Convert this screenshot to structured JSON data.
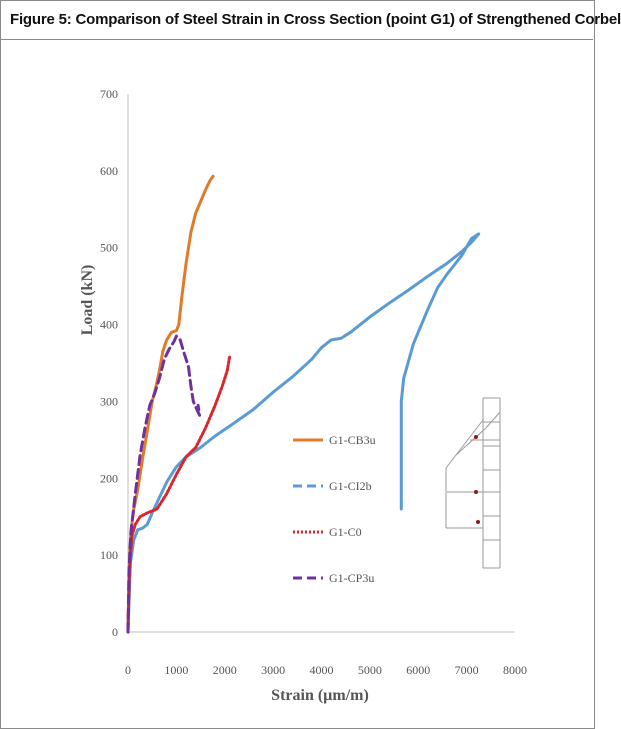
{
  "figure": {
    "title": "Figure 5: Comparison of Steel Strain in Cross Section (point G1) of Strengthened Corbel"
  },
  "chart_data": {
    "type": "line",
    "xlabel": "Strain (µm/m)",
    "ylabel": "Load (kN)",
    "xlim": [
      0,
      8000
    ],
    "ylim": [
      0,
      700
    ],
    "x_ticks": [
      0,
      1000,
      2000,
      3000,
      4000,
      5000,
      6000,
      7000,
      8000
    ],
    "y_ticks": [
      0,
      100,
      200,
      300,
      400,
      500,
      600,
      700
    ],
    "grid": false,
    "legend_position": "center-right",
    "series": [
      {
        "name": "G1-CB3u",
        "color": "#E07B2A",
        "style": "solid",
        "points": [
          [
            0,
            0
          ],
          [
            20,
            80
          ],
          [
            60,
            130
          ],
          [
            120,
            160
          ],
          [
            200,
            185
          ],
          [
            300,
            225
          ],
          [
            400,
            262
          ],
          [
            500,
            300
          ],
          [
            580,
            320
          ],
          [
            650,
            340
          ],
          [
            720,
            365
          ],
          [
            800,
            380
          ],
          [
            900,
            390
          ],
          [
            1000,
            392
          ],
          [
            1050,
            400
          ],
          [
            1120,
            440
          ],
          [
            1200,
            480
          ],
          [
            1300,
            520
          ],
          [
            1400,
            545
          ],
          [
            1500,
            560
          ],
          [
            1600,
            575
          ],
          [
            1700,
            588
          ],
          [
            1760,
            593
          ]
        ]
      },
      {
        "name": "G1-CI2b",
        "color": "#5B9BD5",
        "style": "dashed",
        "points": [
          [
            0,
            0
          ],
          [
            50,
            90
          ],
          [
            120,
            120
          ],
          [
            200,
            133
          ],
          [
            300,
            135
          ],
          [
            400,
            140
          ],
          [
            500,
            155
          ],
          [
            650,
            175
          ],
          [
            800,
            195
          ],
          [
            1000,
            215
          ],
          [
            1200,
            228
          ],
          [
            1500,
            240
          ],
          [
            1800,
            255
          ],
          [
            2200,
            272
          ],
          [
            2600,
            290
          ],
          [
            3000,
            312
          ],
          [
            3400,
            332
          ],
          [
            3800,
            355
          ],
          [
            4000,
            370
          ],
          [
            4200,
            380
          ],
          [
            4400,
            382
          ],
          [
            4600,
            390
          ],
          [
            5000,
            410
          ],
          [
            5400,
            428
          ],
          [
            5800,
            445
          ],
          [
            6200,
            463
          ],
          [
            6600,
            480
          ],
          [
            6900,
            495
          ],
          [
            7100,
            507
          ],
          [
            7250,
            518
          ],
          [
            7100,
            512
          ],
          [
            6900,
            490
          ],
          [
            6600,
            466
          ],
          [
            6400,
            448
          ],
          [
            6200,
            420
          ],
          [
            5900,
            375
          ],
          [
            5700,
            330
          ],
          [
            5650,
            300
          ],
          [
            5650,
            250
          ],
          [
            5650,
            200
          ],
          [
            5650,
            160
          ]
        ]
      },
      {
        "name": "G1-C0",
        "color": "#D9262B",
        "style": "dotted",
        "points": [
          [
            0,
            0
          ],
          [
            30,
            80
          ],
          [
            80,
            125
          ],
          [
            150,
            140
          ],
          [
            250,
            150
          ],
          [
            400,
            155
          ],
          [
            600,
            160
          ],
          [
            800,
            180
          ],
          [
            1000,
            205
          ],
          [
            1200,
            228
          ],
          [
            1400,
            240
          ],
          [
            1600,
            265
          ],
          [
            1800,
            295
          ],
          [
            1950,
            320
          ],
          [
            2050,
            340
          ],
          [
            2100,
            358
          ]
        ]
      },
      {
        "name": "G1-CP3u",
        "color": "#7030A0",
        "style": "dashed",
        "points": [
          [
            0,
            0
          ],
          [
            20,
            80
          ],
          [
            60,
            130
          ],
          [
            150,
            180
          ],
          [
            250,
            230
          ],
          [
            350,
            265
          ],
          [
            450,
            295
          ],
          [
            550,
            310
          ],
          [
            650,
            330
          ],
          [
            750,
            355
          ],
          [
            850,
            368
          ],
          [
            950,
            378
          ],
          [
            1000,
            385
          ],
          [
            1080,
            380
          ],
          [
            1150,
            365
          ],
          [
            1250,
            345
          ],
          [
            1300,
            320
          ],
          [
            1350,
            300
          ],
          [
            1420,
            290
          ],
          [
            1480,
            282
          ],
          [
            1450,
            295
          ]
        ]
      }
    ]
  }
}
